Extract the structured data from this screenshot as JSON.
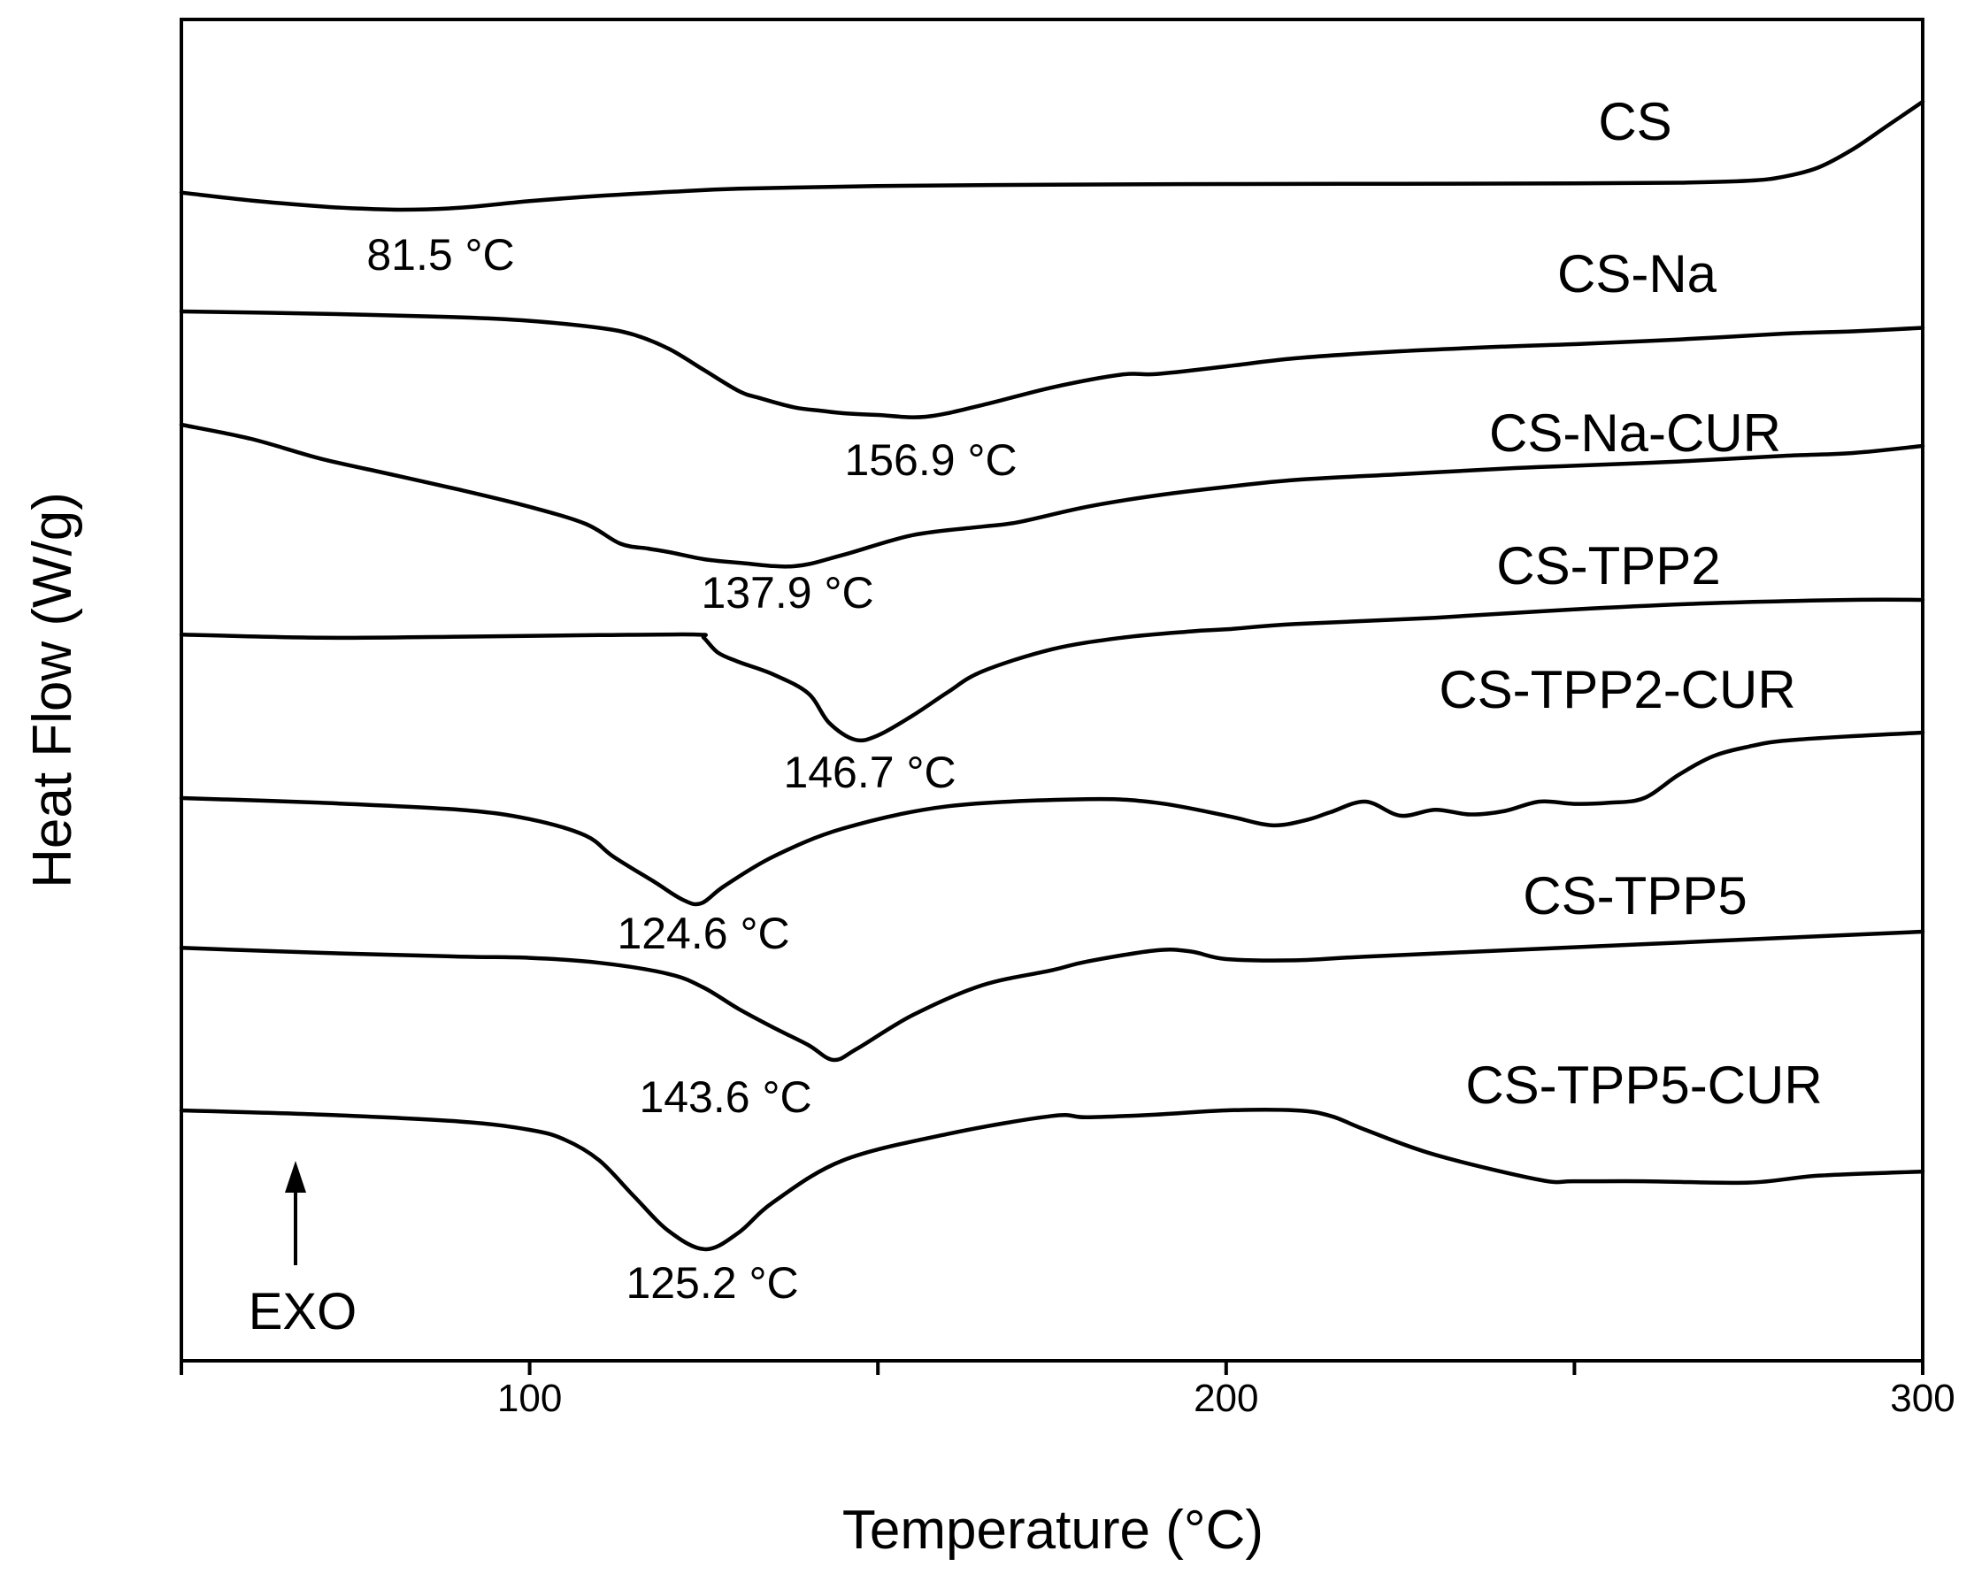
{
  "chart_data": {
    "type": "line",
    "title": "",
    "xlabel": "Temperature (°C)",
    "ylabel": "Heat Flow (W/g)",
    "xlim": [
      50,
      300
    ],
    "xticks": [
      100,
      200,
      300
    ],
    "xticks_minor": [
      150,
      250
    ],
    "yticks": [],
    "grid": false,
    "direction_label": "EXO",
    "series": [
      {
        "name": "CS",
        "peak_label": "81.5 °C",
        "x": [
          50,
          60,
          70,
          75,
          81.5,
          90,
          100,
          110,
          120,
          130,
          150,
          175,
          200,
          225,
          250,
          265,
          275,
          280,
          285,
          290,
          295,
          300
        ],
        "y": [
          1.3,
          0.7,
          0.25,
          0.1,
          0.0,
          0.15,
          0.65,
          1.05,
          1.35,
          1.6,
          1.8,
          1.9,
          1.95,
          1.97,
          2.0,
          2.05,
          2.2,
          2.5,
          3.2,
          4.6,
          6.4,
          8.2
        ]
      },
      {
        "name": "CS-Na",
        "peak_label": "156.9 °C",
        "x": [
          50,
          70,
          90,
          100,
          110,
          115,
          120,
          125,
          130,
          133,
          138,
          142,
          145,
          150,
          156.9,
          165,
          175,
          185,
          190,
          200,
          210,
          225,
          240,
          250,
          265,
          280,
          290,
          300
        ],
        "y": [
          9.0,
          8.8,
          8.5,
          8.2,
          7.6,
          7.0,
          5.8,
          4.0,
          2.2,
          1.6,
          0.8,
          0.5,
          0.3,
          0.15,
          0.0,
          1.0,
          2.5,
          3.6,
          3.65,
          4.3,
          5.0,
          5.6,
          6.0,
          6.2,
          6.6,
          7.1,
          7.3,
          7.6
        ]
      },
      {
        "name": "CS-Na-CUR",
        "peak_label": "137.9 °C",
        "x": [
          50,
          60,
          70,
          80,
          90,
          100,
          108,
          113,
          117,
          120,
          125,
          130,
          137.9,
          145,
          155,
          165,
          170,
          180,
          190,
          200,
          210,
          225,
          240,
          250,
          265,
          280,
          290,
          300
        ],
        "y": [
          10.0,
          9.0,
          7.6,
          6.5,
          5.4,
          4.2,
          3.0,
          1.6,
          1.25,
          1.0,
          0.5,
          0.25,
          0.0,
          0.8,
          2.2,
          2.8,
          3.1,
          4.2,
          5.0,
          5.6,
          6.1,
          6.5,
          6.9,
          7.1,
          7.4,
          7.8,
          8.0,
          8.5
        ]
      },
      {
        "name": "CS-TPP2",
        "peak_label": "146.7 °C",
        "x": [
          50,
          70,
          90,
          110,
          124,
          125,
          127,
          130,
          135,
          140,
          143,
          146.7,
          150,
          155,
          160,
          165,
          175,
          185,
          195,
          200,
          210,
          230,
          250,
          270,
          290,
          300
        ],
        "y": [
          10.0,
          9.7,
          9.8,
          9.95,
          10.0,
          9.7,
          8.3,
          7.4,
          6.2,
          4.4,
          1.6,
          0.0,
          0.4,
          2.3,
          4.5,
          6.5,
          8.6,
          9.7,
          10.3,
          10.5,
          11.0,
          11.6,
          12.4,
          13.0,
          13.3,
          13.3
        ]
      },
      {
        "name": "CS-TPP2-CUR",
        "peak_label": "124.6 °C",
        "x": [
          50,
          70,
          90,
          100,
          108,
          112,
          118,
          122,
          124.6,
          128,
          135,
          145,
          160,
          180,
          190,
          200,
          205,
          208,
          212,
          215,
          220,
          225,
          230,
          235,
          240,
          245,
          250,
          255,
          260,
          265,
          270,
          275,
          280,
          290,
          300
        ],
        "y": [
          9.0,
          8.6,
          8.0,
          7.2,
          5.8,
          4.0,
          1.8,
          0.3,
          0.0,
          1.5,
          4.0,
          6.4,
          8.3,
          8.9,
          8.6,
          7.5,
          6.8,
          6.7,
          7.2,
          7.8,
          8.7,
          7.5,
          8.0,
          7.6,
          7.9,
          8.7,
          8.5,
          8.6,
          9.0,
          11.0,
          12.6,
          13.4,
          13.9,
          14.3,
          14.6
        ]
      },
      {
        "name": "CS-TPP5",
        "peak_label": "143.6 °C",
        "x": [
          50,
          70,
          90,
          100,
          110,
          120,
          125,
          130,
          135,
          140,
          143.6,
          147,
          155,
          165,
          175,
          180,
          190,
          195,
          200,
          210,
          220,
          240,
          260,
          280,
          300
        ],
        "y": [
          9.0,
          8.6,
          8.3,
          8.2,
          7.8,
          6.9,
          5.8,
          4.1,
          2.6,
          1.2,
          0.0,
          0.9,
          3.6,
          6.0,
          7.2,
          7.9,
          8.8,
          8.7,
          8.1,
          8.0,
          8.3,
          8.8,
          9.3,
          9.8,
          10.3
        ]
      },
      {
        "name": "CS-TPP5-CUR",
        "peak_label": "125.2 °C",
        "x": [
          50,
          70,
          90,
          100,
          105,
          110,
          115,
          120,
          125.2,
          130,
          135,
          145,
          160,
          175,
          180,
          190,
          200,
          210,
          215,
          220,
          230,
          245,
          250,
          260,
          275,
          285,
          300
        ],
        "y": [
          10.0,
          9.7,
          9.2,
          8.6,
          7.9,
          6.4,
          3.8,
          1.3,
          0.0,
          1.2,
          3.4,
          6.4,
          8.3,
          9.6,
          9.5,
          9.7,
          10.0,
          10.0,
          9.6,
          8.6,
          6.8,
          5.0,
          4.9,
          4.9,
          4.8,
          5.3,
          5.6
        ]
      }
    ]
  }
}
